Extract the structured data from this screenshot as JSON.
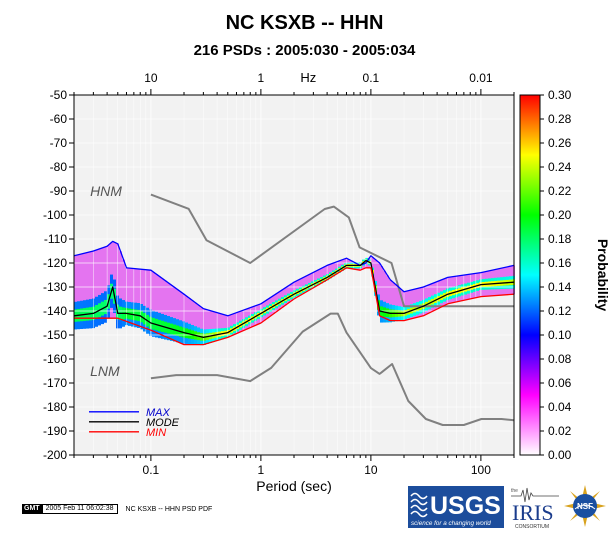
{
  "chart_data": {
    "type": "heatmap",
    "title": "NC KSXB -- HHN",
    "subtitle": "216 PSDs : 2005:030 - 2005:034",
    "xlabel": "Period (sec)",
    "top_axis_label": "Hz",
    "colorbar_label": "Probability",
    "x_scale": "log",
    "xlim": [
      0.02,
      200
    ],
    "ylim": [
      -200,
      -50
    ],
    "grid": true,
    "x_ticks": [
      {
        "value": 0.1,
        "label": "0.1"
      },
      {
        "value": 1,
        "label": "1"
      },
      {
        "value": 10,
        "label": "10"
      },
      {
        "value": 100,
        "label": "100"
      }
    ],
    "top_ticks": [
      {
        "value": 0.1,
        "label": "10"
      },
      {
        "value": 1,
        "label": "1"
      },
      {
        "value": 10,
        "label": "0.1"
      },
      {
        "value": 100,
        "label": "0.01"
      }
    ],
    "y_ticks": [
      -50,
      -60,
      -70,
      -80,
      -90,
      -100,
      -110,
      -120,
      -130,
      -140,
      -150,
      -160,
      -170,
      -180,
      -190,
      -200
    ],
    "colorbar": {
      "range": [
        0,
        0.3
      ],
      "ticks": [
        "0.00",
        "0.02",
        "0.04",
        "0.06",
        "0.08",
        "0.10",
        "0.12",
        "0.14",
        "0.16",
        "0.18",
        "0.20",
        "0.22",
        "0.24",
        "0.26",
        "0.28",
        "0.30"
      ],
      "colors": [
        "#ffffff",
        "#ff00ff",
        "#0000ff",
        "#00ffff",
        "#00ff00",
        "#ffff00",
        "#ff0000"
      ]
    },
    "legend": {
      "placement": "bottom-left",
      "entries": [
        {
          "label": "MAX",
          "color": "#0000ff",
          "text_color": "#0000cc"
        },
        {
          "label": "MODE",
          "color": "#000000",
          "text_color": "#000000"
        },
        {
          "label": "MIN",
          "color": "#ff0000",
          "text_color": "#ff0000"
        }
      ]
    },
    "annotations": [
      {
        "text": "HNM",
        "x": 0.028,
        "y": -92
      },
      {
        "text": "LNM",
        "x": 0.028,
        "y": -167
      }
    ],
    "series": [
      {
        "name": "HNM",
        "color": "#808080",
        "x": [
          0.1,
          0.22,
          0.32,
          0.8,
          3.8,
          4.6,
          6.3,
          7.9,
          15.4,
          20,
          200
        ],
        "y": [
          -91.5,
          -97.4,
          -110.5,
          -120,
          -97.5,
          -96.5,
          -101,
          -113.5,
          -120,
          -138,
          -138
        ]
      },
      {
        "name": "LNM",
        "color": "#808080",
        "x": [
          0.1,
          0.17,
          0.4,
          0.8,
          1.24,
          2.4,
          4.3,
          5,
          6,
          10,
          12,
          15.6,
          21.9,
          31.6,
          45,
          70,
          101,
          154,
          200
        ],
        "y": [
          -168,
          -166.7,
          -166.7,
          -169.2,
          -163.7,
          -148.6,
          -141.1,
          -141.1,
          -149,
          -163.8,
          -166.2,
          -162.1,
          -177.5,
          -185,
          -187.5,
          -187.5,
          -185,
          -185,
          -185.5
        ]
      },
      {
        "name": "MAX",
        "color": "#0000ff",
        "x": [
          0.02,
          0.03,
          0.04,
          0.045,
          0.05,
          0.06,
          0.1,
          0.2,
          0.3,
          0.5,
          1,
          2,
          4,
          6,
          8,
          9,
          10,
          12,
          15,
          20,
          30,
          50,
          100,
          200
        ],
        "y": [
          -117,
          -115,
          -113,
          -111,
          -112,
          -122,
          -123,
          -133,
          -139,
          -142,
          -137,
          -128,
          -121,
          -118,
          -121,
          -120,
          -117,
          -120,
          -127,
          -132,
          -130,
          -126,
          -124,
          -121
        ]
      },
      {
        "name": "MODE",
        "color": "#000000",
        "x": [
          0.02,
          0.03,
          0.04,
          0.045,
          0.05,
          0.06,
          0.08,
          0.1,
          0.2,
          0.3,
          0.5,
          1,
          2,
          4,
          6,
          8,
          9,
          10,
          12,
          15,
          20,
          30,
          50,
          100,
          200
        ],
        "y": [
          -142,
          -141,
          -138,
          -130,
          -141,
          -141,
          -142,
          -145,
          -149,
          -151,
          -149,
          -141,
          -133,
          -126,
          -121,
          -121,
          -119,
          -120,
          -140,
          -141,
          -141,
          -138,
          -133,
          -129,
          -128
        ]
      },
      {
        "name": "MIN",
        "color": "#ff0000",
        "x": [
          0.02,
          0.05,
          0.1,
          0.2,
          0.3,
          0.5,
          1,
          2,
          4,
          6,
          8,
          9,
          10,
          12,
          15,
          20,
          30,
          50,
          100,
          200
        ],
        "y": [
          -143,
          -143,
          -148,
          -154,
          -154,
          -151,
          -145,
          -135,
          -127,
          -122,
          -123,
          -122,
          -122,
          -142,
          -144,
          -144,
          -142,
          -137,
          -134,
          -133
        ]
      }
    ]
  },
  "footer": {
    "gmt_badge": "GMT",
    "timestamp": "2005 Feb 11 06:02:38",
    "caption": "NC KSXB -- HHN PSD PDF"
  },
  "logos": {
    "usgs_text": "USGS",
    "usgs_tagline": "science for a changing world",
    "iris_prefix": "the",
    "iris_text": "IRIS",
    "iris_sub": "CONSORTIUM",
    "nsf_text": "NSF"
  }
}
